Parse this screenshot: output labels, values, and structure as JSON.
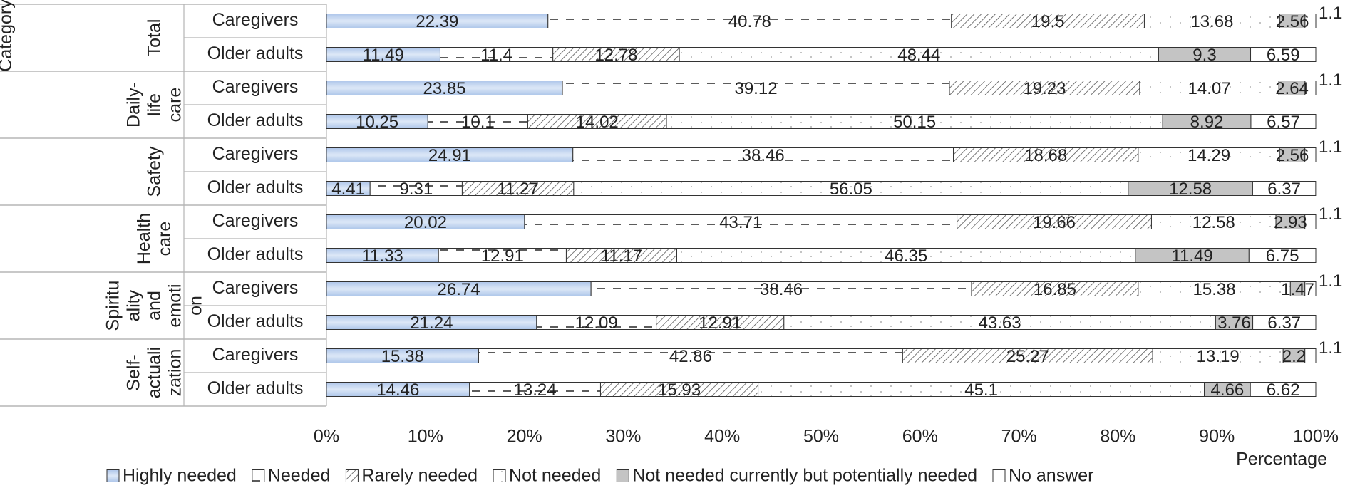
{
  "chart_data": {
    "type": "bar",
    "orientation": "horizontal",
    "stacked": "100%",
    "ylabel": "Category",
    "xlabel": "Percentage",
    "xlim": [
      0,
      100
    ],
    "x_ticks": [
      "0%",
      "10%",
      "20%",
      "30%",
      "40%",
      "50%",
      "60%",
      "70%",
      "80%",
      "90%",
      "100%"
    ],
    "legend_position": "bottom",
    "groups": [
      {
        "label": "Total",
        "rows": [
          "Caregivers",
          "Older adults"
        ]
      },
      {
        "label": "Daily-life care",
        "rows": [
          "Caregivers",
          "Older adults"
        ]
      },
      {
        "label": "Safety",
        "rows": [
          "Caregivers",
          "Older adults"
        ]
      },
      {
        "label": "Health care",
        "rows": [
          "Caregivers",
          "Older adults"
        ]
      },
      {
        "label": "Spirituality and emotion",
        "rows": [
          "Caregivers",
          "Older adults"
        ]
      },
      {
        "label": "Self-actualization",
        "rows": [
          "Caregivers",
          "Older adults"
        ]
      }
    ],
    "series": [
      {
        "name": "Highly needed",
        "color": "#c5d6ef",
        "pattern": "solid-blue",
        "values": [
          22.39,
          11.49,
          23.85,
          10.25,
          24.91,
          4.41,
          20.02,
          11.33,
          26.74,
          21.24,
          15.38,
          14.46
        ]
      },
      {
        "name": "Needed",
        "color": "#ffffff",
        "pattern": "dashed-lines",
        "values": [
          40.78,
          11.4,
          39.12,
          10.1,
          38.46,
          9.31,
          43.71,
          12.91,
          38.46,
          12.09,
          42.86,
          13.24
        ]
      },
      {
        "name": "Rarely needed",
        "color": "#ffffff",
        "pattern": "diagonal-hatch",
        "values": [
          19.5,
          12.78,
          19.23,
          14.02,
          18.68,
          11.27,
          19.66,
          11.17,
          16.85,
          12.91,
          25.27,
          15.93
        ]
      },
      {
        "name": "Not needed",
        "color": "#ffffff",
        "pattern": "sparse-dots",
        "values": [
          13.68,
          48.44,
          14.07,
          50.15,
          14.29,
          56.05,
          12.58,
          46.35,
          15.38,
          43.63,
          13.19,
          45.1
        ]
      },
      {
        "name": "Not needed currently but potentially needed",
        "color": "#c4c4c4",
        "pattern": "solid-gray",
        "values": [
          2.56,
          9.3,
          2.64,
          8.92,
          2.56,
          12.58,
          2.93,
          11.49,
          1.47,
          3.76,
          2.2,
          4.66
        ]
      },
      {
        "name": "No answer",
        "color": "#ffffff",
        "pattern": "plain",
        "values": [
          1.1,
          6.59,
          1.1,
          6.57,
          1.1,
          6.37,
          1.1,
          6.75,
          1.1,
          6.37,
          1.1,
          6.62
        ]
      }
    ],
    "data_labels": [
      [
        "22.39",
        "40.78",
        "19.5",
        "13.68",
        "2.56",
        "1.1"
      ],
      [
        "11.49",
        "11.4",
        "12.78",
        "48.44",
        "9.3",
        "6.59"
      ],
      [
        "23.85",
        "39.12",
        "19.23",
        "14.07",
        "2.64",
        "1.1"
      ],
      [
        "10.25",
        "10.1",
        "14.02",
        "50.15",
        "8.92",
        "6.57"
      ],
      [
        "24.91",
        "38.46",
        "18.68",
        "14.29",
        "2.56",
        "1.1"
      ],
      [
        "4.41",
        "9.31",
        "11.27",
        "56.05",
        "12.58",
        "6.37"
      ],
      [
        "20.02",
        "43.71",
        "19.66",
        "12.58",
        "2.93",
        "1.1"
      ],
      [
        "11.33",
        "12.91",
        "11.17",
        "46.35",
        "11.49",
        "6.75"
      ],
      [
        "26.74",
        "38.46",
        "16.85",
        "15.38",
        "1.47",
        "1.1"
      ],
      [
        "21.24",
        "12.09",
        "12.91",
        "43.63",
        "3.76",
        "6.37"
      ],
      [
        "15.38",
        "42.86",
        "25.27",
        "13.19",
        "2.2",
        "1.1"
      ],
      [
        "14.46",
        "13.24",
        "15.93",
        "45.1",
        "4.66",
        "6.62"
      ]
    ],
    "group_label_lines": [
      [
        "Total"
      ],
      [
        "Daily-",
        "life",
        "care"
      ],
      [
        "Safety"
      ],
      [
        "Health",
        "care"
      ],
      [
        "Spiritu",
        "ality",
        "and",
        "emoti",
        "on"
      ],
      [
        "Self-",
        "actuali",
        "zation"
      ]
    ]
  }
}
